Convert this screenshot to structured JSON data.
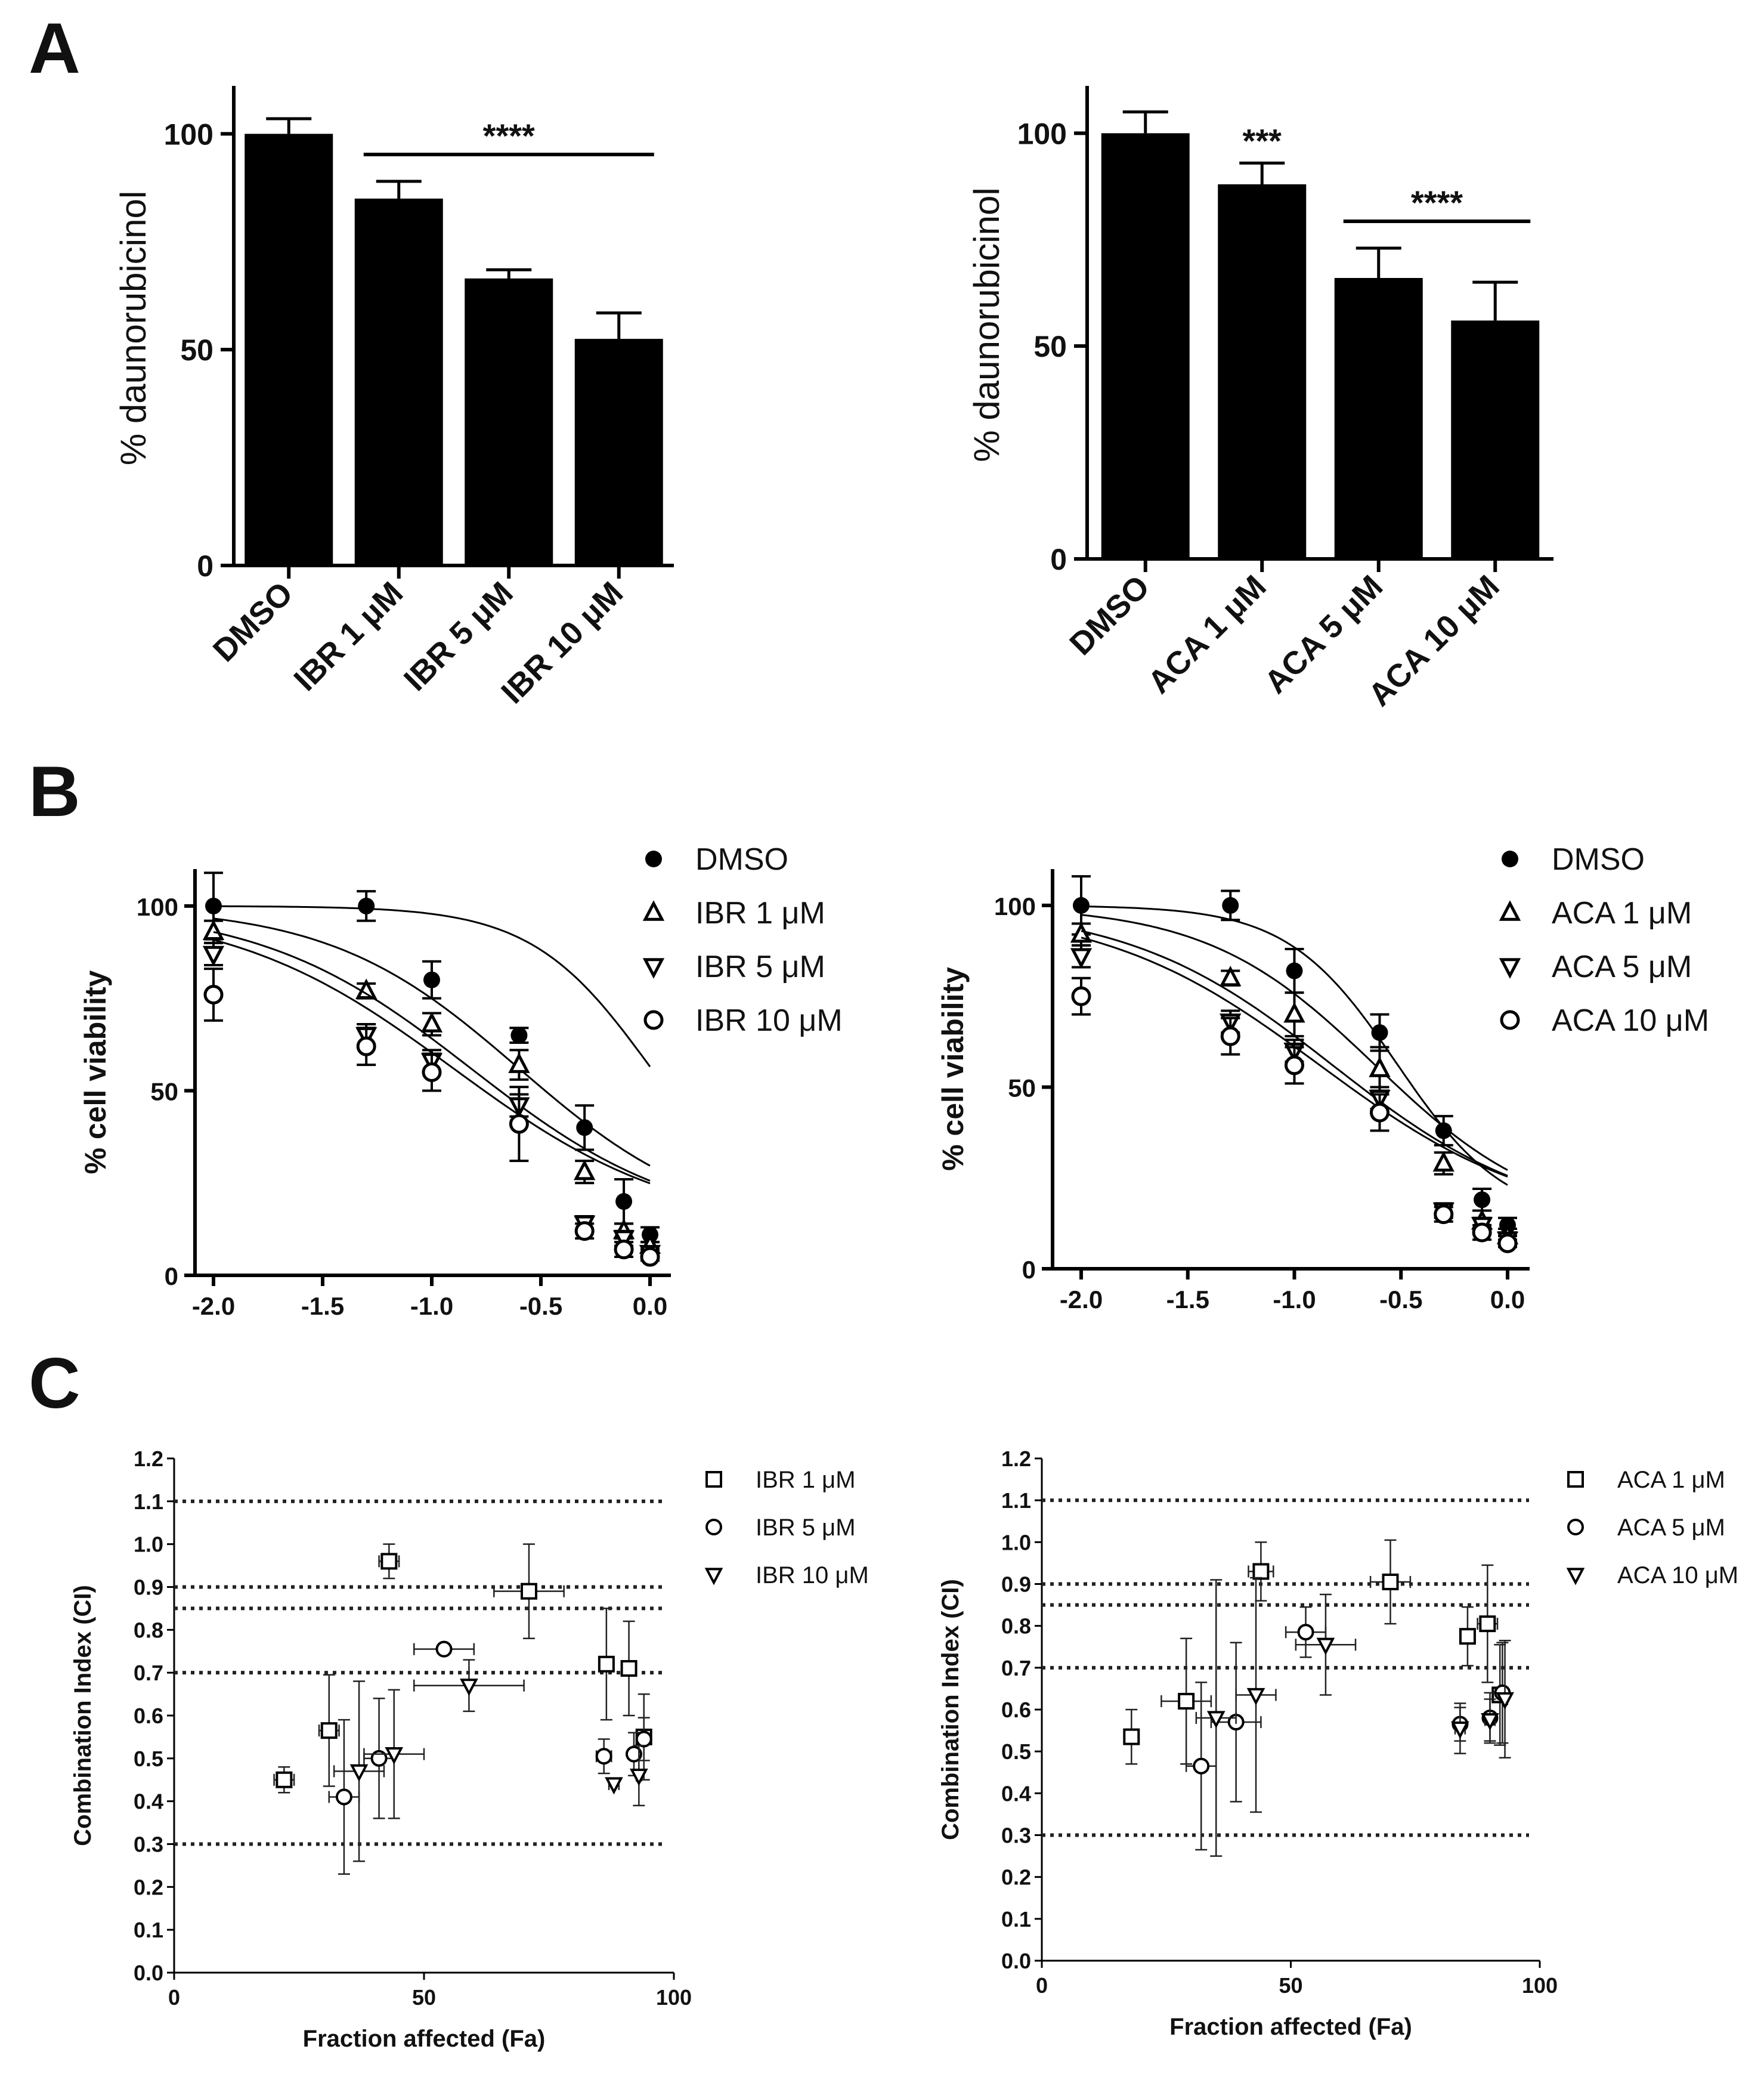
{
  "figure": {
    "panel_labels": [
      "A",
      "B",
      "C"
    ]
  },
  "chart_data": [
    {
      "id": "A1",
      "type": "bar",
      "panel": "A",
      "ylabel": "% daunorubicinol",
      "ylim": [
        0,
        110
      ],
      "yticks": [
        0,
        50,
        100
      ],
      "categories": [
        "DMSO",
        "IBR 1 μM",
        "IBR 5 μM",
        "IBR 10 μM"
      ],
      "values": [
        100,
        85,
        66.5,
        52.5
      ],
      "errors": [
        3.5,
        4,
        2,
        6
      ],
      "significance": [
        {
          "label": "****",
          "from": 1,
          "to": 3
        }
      ]
    },
    {
      "id": "A2",
      "type": "bar",
      "panel": "A",
      "ylabel": "% daunorubicinol",
      "ylim": [
        0,
        110
      ],
      "yticks": [
        0,
        50,
        100
      ],
      "categories": [
        "DMSO",
        "ACA 1 μM",
        "ACA 5 μM",
        "ACA 10 μM"
      ],
      "values": [
        100,
        88,
        66,
        56
      ],
      "errors": [
        5,
        5,
        7,
        9
      ],
      "significance": [
        {
          "label": "***",
          "from": 1,
          "to": 1
        },
        {
          "label": "****",
          "from": 2,
          "to": 3
        }
      ]
    },
    {
      "id": "B1",
      "type": "scatter",
      "panel": "B",
      "ylabel": "% cell viability",
      "xlim": [
        -2.0,
        0.0
      ],
      "ylim": [
        0,
        110
      ],
      "xticks": [
        "-2.0",
        "-1.5",
        "-1.0",
        "-0.5",
        "0.0"
      ],
      "yticks": [
        0,
        50,
        100
      ],
      "x": [
        -2.0,
        -1.3,
        -1.0,
        -0.6,
        -0.3,
        -0.12,
        0.0
      ],
      "series": [
        {
          "name": "DMSO",
          "marker": "filled-circle",
          "values": [
            100,
            100,
            80,
            65,
            40,
            20,
            11
          ],
          "errors": [
            9,
            4,
            5,
            2,
            6,
            6,
            2
          ],
          "fit": [
            0.0,
            13,
            1.6,
            100
          ]
        },
        {
          "name": "IBR 1 μM",
          "marker": "triangle-up",
          "values": [
            93,
            77,
            68,
            57,
            28,
            12,
            8
          ],
          "errors": [
            3,
            2,
            3,
            4,
            3,
            2,
            1
          ],
          "fit": [
            -0.6,
            12,
            1.0,
            100
          ]
        },
        {
          "name": "IBR 5 μM",
          "marker": "triangle-down",
          "values": [
            87,
            65,
            58,
            46,
            14,
            10,
            6
          ],
          "errors": [
            3,
            3,
            3,
            3,
            2,
            2,
            1
          ],
          "fit": [
            -0.82,
            12,
            0.9,
            100
          ]
        },
        {
          "name": "IBR 10 μM",
          "marker": "open-circle",
          "values": [
            76,
            62,
            55,
            41,
            12,
            7,
            5
          ],
          "errors": [
            7,
            5,
            5,
            10,
            2,
            2,
            1
          ],
          "fit": [
            -0.9,
            12,
            0.85,
            100
          ]
        }
      ]
    },
    {
      "id": "B2",
      "type": "scatter",
      "panel": "B",
      "ylabel": "% cell viability",
      "xlim": [
        -2.0,
        0.0
      ],
      "ylim": [
        0,
        110
      ],
      "xticks": [
        "-2.0",
        "-1.5",
        "-1.0",
        "-0.5",
        "0.0"
      ],
      "yticks": [
        0,
        50,
        100
      ],
      "x": [
        -2.0,
        -1.3,
        -1.0,
        -0.6,
        -0.3,
        -0.12,
        0.0
      ],
      "series": [
        {
          "name": "DMSO",
          "marker": "filled-circle",
          "values": [
            100,
            100,
            82,
            65,
            38,
            19,
            12
          ],
          "errors": [
            8,
            4,
            6,
            5,
            4,
            3,
            2
          ],
          "fit": [
            -0.52,
            13,
            1.7,
            100
          ]
        },
        {
          "name": "ACA 1 μM",
          "marker": "triangle-up",
          "values": [
            92,
            80,
            70,
            55,
            29,
            13,
            9
          ],
          "errors": [
            3,
            2,
            6,
            6,
            3,
            3,
            2
          ],
          "fit": [
            -0.62,
            12,
            1.1,
            100
          ]
        },
        {
          "name": "ACA 5 μM",
          "marker": "triangle-down",
          "values": [
            86,
            68,
            60,
            47,
            16,
            12,
            8
          ],
          "errors": [
            3,
            3,
            3,
            3,
            2,
            2,
            1
          ],
          "fit": [
            -0.82,
            12,
            0.9,
            100
          ]
        },
        {
          "name": "ACA 10 μM",
          "marker": "open-circle",
          "values": [
            75,
            64,
            56,
            43,
            15,
            10,
            7
          ],
          "errors": [
            5,
            5,
            5,
            5,
            2,
            2,
            1
          ],
          "fit": [
            -0.88,
            12,
            0.85,
            100
          ]
        }
      ]
    },
    {
      "id": "C1",
      "type": "scatter",
      "panel": "C",
      "ylabel": "Combination Index (CI)",
      "xlabel": "Fraction affected (Fa)",
      "xlim": [
        0,
        100
      ],
      "ylim": [
        0.0,
        1.2
      ],
      "xticks": [
        "0",
        "50",
        "100"
      ],
      "yticks": [
        "0.0",
        "0.1",
        "0.2",
        "0.3",
        "0.4",
        "0.5",
        "0.6",
        "0.7",
        "0.8",
        "0.9",
        "1.0",
        "1.1",
        "1.2"
      ],
      "reference_lines": [
        0.3,
        0.7,
        0.85,
        0.9,
        1.1
      ],
      "series": [
        {
          "name": "IBR 1 μM",
          "marker": "open-square",
          "points": [
            {
              "x": 22,
              "y": 0.45,
              "xerr": 2,
              "yerr": 0.03
            },
            {
              "x": 31,
              "y": 0.565,
              "xerr": 2,
              "yerr": 0.13
            },
            {
              "x": 43,
              "y": 0.96,
              "xerr": 2,
              "yerr": 0.04
            },
            {
              "x": 71,
              "y": 0.89,
              "xerr": 7,
              "yerr": 0.11
            },
            {
              "x": 86.5,
              "y": 0.72,
              "xerr": 1.5,
              "yerr": 0.13
            },
            {
              "x": 91,
              "y": 0.71,
              "xerr": 1,
              "yerr": 0.11
            },
            {
              "x": 94,
              "y": 0.55,
              "xerr": 0.5,
              "yerr": 0.1
            }
          ]
        },
        {
          "name": "IBR 5 μM",
          "marker": "open-circle",
          "points": [
            {
              "x": 34,
              "y": 0.41,
              "xerr": 3,
              "yerr": 0.18
            },
            {
              "x": 41,
              "y": 0.5,
              "xerr": 3,
              "yerr": 0.14
            },
            {
              "x": 54,
              "y": 0.755,
              "xerr": 6,
              "yerr": 0.0
            },
            {
              "x": 86,
              "y": 0.505,
              "xerr": 1.5,
              "yerr": 0.04
            },
            {
              "x": 92,
              "y": 0.51,
              "xerr": 1,
              "yerr": 0.05
            },
            {
              "x": 94,
              "y": 0.545,
              "xerr": 0.5,
              "yerr": 0.05
            }
          ]
        },
        {
          "name": "IBR 10 μM",
          "marker": "triangle-down",
          "points": [
            {
              "x": 37,
              "y": 0.47,
              "xerr": 5,
              "yerr": 0.21
            },
            {
              "x": 44,
              "y": 0.51,
              "xerr": 6,
              "yerr": 0.15
            },
            {
              "x": 59,
              "y": 0.67,
              "xerr": 11,
              "yerr": 0.06
            },
            {
              "x": 88,
              "y": 0.44,
              "xerr": 1,
              "yerr": 0.0
            },
            {
              "x": 93,
              "y": 0.46,
              "xerr": 0.5,
              "yerr": 0.07
            }
          ]
        }
      ]
    },
    {
      "id": "C2",
      "type": "scatter",
      "panel": "C",
      "ylabel": "Combination Index (CI)",
      "xlabel": "Fraction affected (Fa)",
      "xlim": [
        0,
        100
      ],
      "ylim": [
        0.0,
        1.2
      ],
      "xticks": [
        "0",
        "50",
        "100"
      ],
      "yticks": [
        "0.0",
        "0.1",
        "0.2",
        "0.3",
        "0.4",
        "0.5",
        "0.6",
        "0.7",
        "0.8",
        "0.9",
        "1.0",
        "1.1",
        "1.2"
      ],
      "reference_lines": [
        0.3,
        0.7,
        0.85,
        0.9,
        1.1
      ],
      "series": [
        {
          "name": "ACA 1 μM",
          "marker": "open-square",
          "points": [
            {
              "x": 18,
              "y": 0.535,
              "xerr": 0,
              "yerr": 0.065
            },
            {
              "x": 29,
              "y": 0.62,
              "xerr": 5,
              "yerr": 0.15
            },
            {
              "x": 44,
              "y": 0.93,
              "xerr": 2.5,
              "yerr": 0.07
            },
            {
              "x": 70,
              "y": 0.905,
              "xerr": 4,
              "yerr": 0.1
            },
            {
              "x": 85.5,
              "y": 0.775,
              "xerr": 1.5,
              "yerr": 0.07
            },
            {
              "x": 89.5,
              "y": 0.805,
              "xerr": 2,
              "yerr": 0.14
            },
            {
              "x": 92,
              "y": 0.635,
              "xerr": 1,
              "yerr": 0.12
            }
          ]
        },
        {
          "name": "ACA 5 μM",
          "marker": "open-circle",
          "points": [
            {
              "x": 32,
              "y": 0.465,
              "xerr": 3,
              "yerr": 0.2
            },
            {
              "x": 39,
              "y": 0.57,
              "xerr": 5,
              "yerr": 0.19
            },
            {
              "x": 53,
              "y": 0.785,
              "xerr": 4,
              "yerr": 0.06
            },
            {
              "x": 84,
              "y": 0.565,
              "xerr": 1,
              "yerr": 0.04
            },
            {
              "x": 90,
              "y": 0.58,
              "xerr": 1,
              "yerr": 0.06
            },
            {
              "x": 92.5,
              "y": 0.64,
              "xerr": 0.5,
              "yerr": 0.12
            }
          ]
        },
        {
          "name": "ACA 10 μM",
          "marker": "triangle-down",
          "points": [
            {
              "x": 35,
              "y": 0.58,
              "xerr": 4,
              "yerr": 0.33
            },
            {
              "x": 43,
              "y": 0.635,
              "xerr": 4,
              "yerr": 0.28
            },
            {
              "x": 57,
              "y": 0.755,
              "xerr": 6,
              "yerr": 0.12
            },
            {
              "x": 84,
              "y": 0.555,
              "xerr": 1,
              "yerr": 0.06
            },
            {
              "x": 90,
              "y": 0.575,
              "xerr": 1,
              "yerr": 0.05
            },
            {
              "x": 93,
              "y": 0.625,
              "xerr": 0.5,
              "yerr": 0.14
            }
          ]
        }
      ]
    }
  ]
}
